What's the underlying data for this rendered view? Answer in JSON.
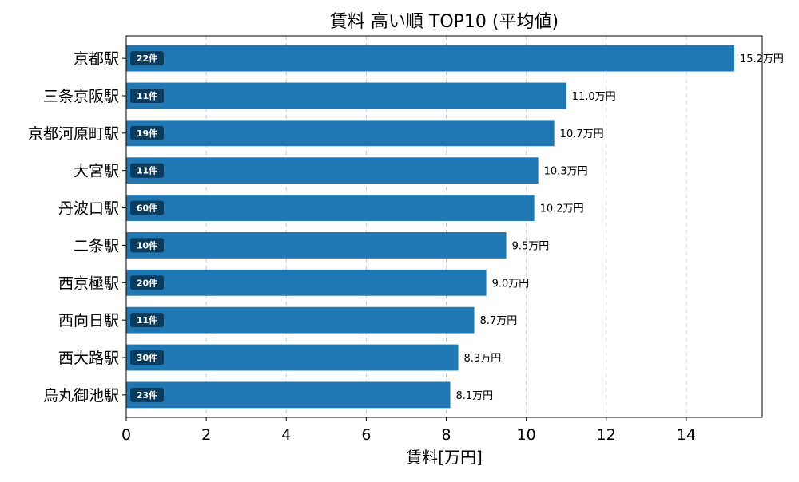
{
  "chart_data": {
    "type": "bar",
    "orientation": "horizontal",
    "title": "賃料 高い順 TOP10 (平均値)",
    "xlabel": "賃料[万円]",
    "ylabel": "",
    "categories": [
      "京都駅",
      "三条京阪駅",
      "京都河原町駅",
      "大宮駅",
      "丹波口駅",
      "二条駅",
      "西京極駅",
      "西向日駅",
      "西大路駅",
      "烏丸御池駅"
    ],
    "values": [
      15.2,
      11.0,
      10.7,
      10.3,
      10.2,
      9.5,
      9.0,
      8.7,
      8.3,
      8.1
    ],
    "value_labels": [
      "15.2万円",
      "11.0万円",
      "10.7万円",
      "10.3万円",
      "10.2万円",
      "9.5万円",
      "9.0万円",
      "8.7万円",
      "8.3万円",
      "8.1万円"
    ],
    "count_labels": [
      "22件",
      "11件",
      "19件",
      "11件",
      "60件",
      "10件",
      "20件",
      "11件",
      "30件",
      "23件"
    ],
    "xlim": [
      0,
      15.9
    ],
    "xticks": [
      0,
      2,
      4,
      6,
      8,
      10,
      12,
      14
    ],
    "grid": "x-dashed",
    "bar_color": "#1f77b4",
    "badge_color": "#0b3c5d"
  }
}
